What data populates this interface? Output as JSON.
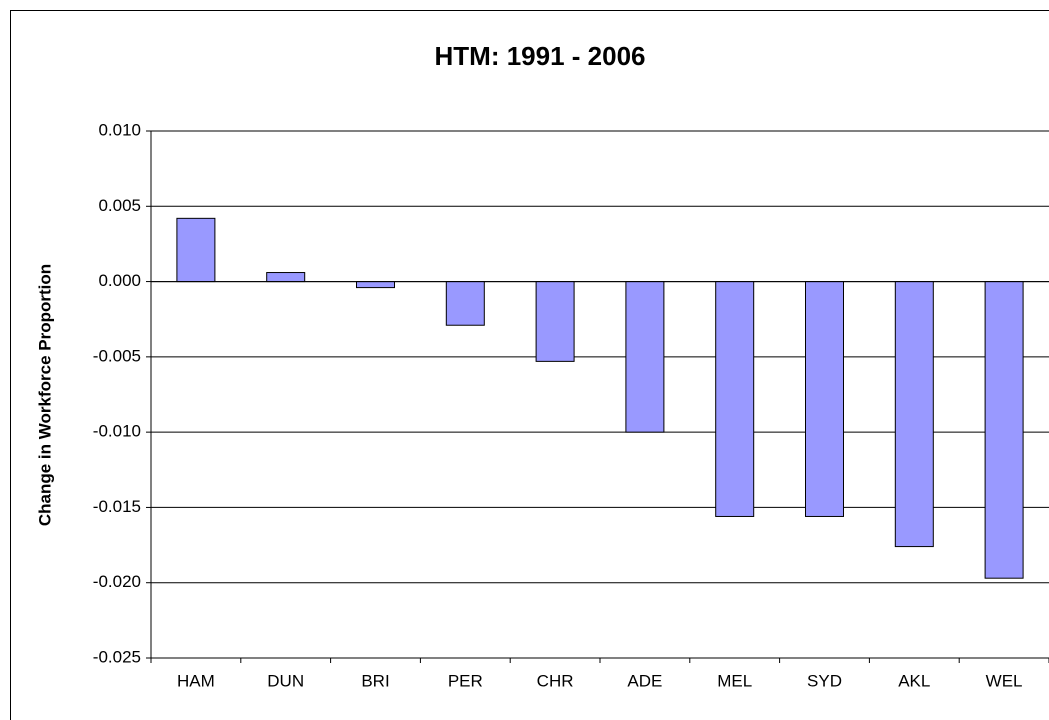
{
  "chart_data": {
    "type": "bar",
    "title": "HTM: 1991 - 2006",
    "y_label": "Change in Workforce Proportion",
    "categories": [
      "HAM",
      "DUN",
      "BRI",
      "PER",
      "CHR",
      "ADE",
      "MEL",
      "SYD",
      "AKL",
      "WEL"
    ],
    "values": [
      0.0042,
      0.0006,
      -0.0004,
      -0.0029,
      -0.0053,
      -0.01,
      -0.0156,
      -0.0156,
      -0.0176,
      -0.0197
    ],
    "color": "#9999ff",
    "ylim": [
      -0.025,
      0.01
    ],
    "yticks": [
      {
        "value": 0.01,
        "label": "0.010"
      },
      0.005,
      {
        "value": 0,
        "label": "0.000"
      },
      -0.005,
      {
        "value": -0.01,
        "label": "-0.010"
      },
      -0.015,
      {
        "value": -0.02,
        "label": "-0.020"
      },
      -0.025
    ],
    "grid": true
  }
}
